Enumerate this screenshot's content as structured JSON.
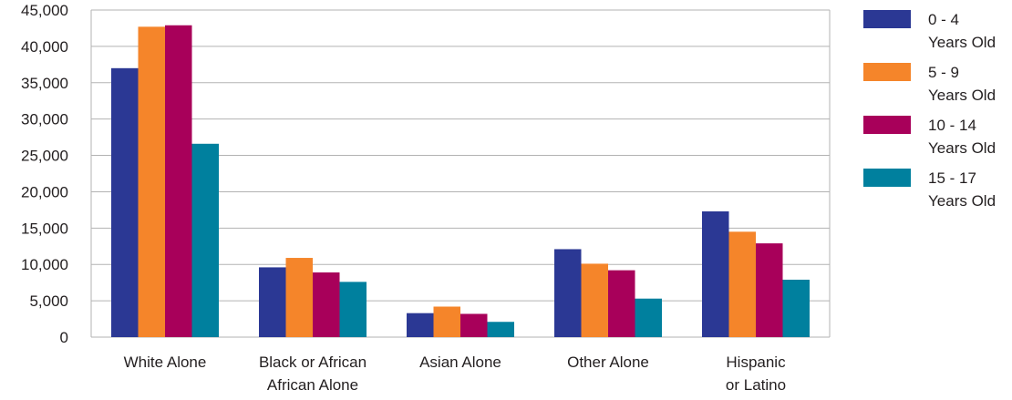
{
  "chart_data": {
    "type": "bar",
    "title": "",
    "xlabel": "",
    "ylabel": "",
    "ylim": [
      0,
      45000
    ],
    "yticks": [
      0,
      5000,
      10000,
      15000,
      20000,
      25000,
      30000,
      35000,
      40000,
      45000
    ],
    "ytick_labels": [
      "0",
      "5,000",
      "10,000",
      "15,000",
      "20,000",
      "25,000",
      "30,000",
      "35,000",
      "40,000",
      "45,000"
    ],
    "grid": true,
    "legend_position": "right",
    "categories": [
      [
        "White Alone"
      ],
      [
        "Black or African",
        "African Alone"
      ],
      [
        "Asian Alone"
      ],
      [
        "Other Alone"
      ],
      [
        "Hispanic",
        "or Latino"
      ]
    ],
    "series": [
      {
        "name": [
          "0 - 4",
          "Years Old"
        ],
        "color": "#2b3894",
        "values": [
          37000,
          9600,
          3300,
          12100,
          17300
        ]
      },
      {
        "name": [
          "5 - 9",
          "Years Old"
        ],
        "color": "#f5852a",
        "values": [
          42700,
          10900,
          4200,
          10100,
          14500
        ]
      },
      {
        "name": [
          "10 - 14",
          "Years Old"
        ],
        "color": "#a8005a",
        "values": [
          42900,
          8900,
          3200,
          9200,
          12900
        ]
      },
      {
        "name": [
          "15 - 17",
          "Years Old"
        ],
        "color": "#00809e",
        "values": [
          26600,
          7600,
          2100,
          5300,
          7900
        ]
      }
    ]
  }
}
